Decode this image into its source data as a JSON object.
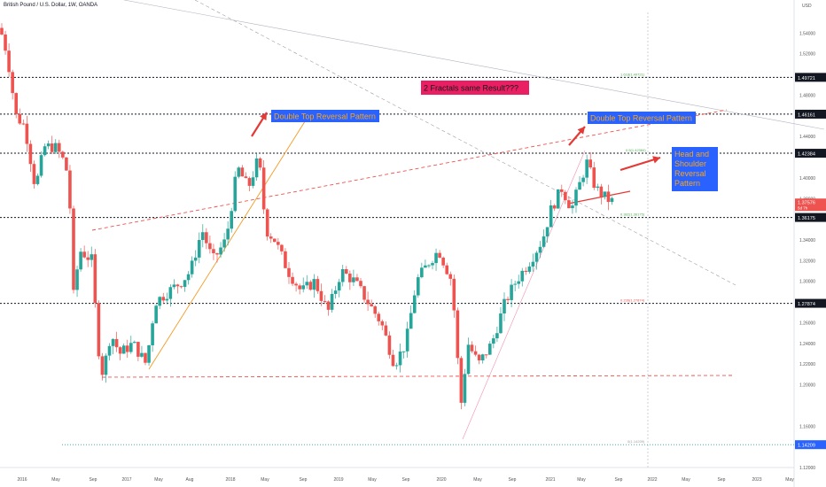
{
  "header": {
    "symbol_title": "British Pound / U.S. Dollar, 1W, OANDA",
    "currency": "USD"
  },
  "chart_data": {
    "type": "candlestick",
    "title": "British Pound / U.S. Dollar, 1W, OANDA",
    "ylim": [
      1.12,
      1.56
    ],
    "y_ticks": [
      1.54,
      1.52,
      1.48,
      1.44,
      1.4,
      1.38,
      1.34,
      1.32,
      1.3,
      1.26,
      1.24,
      1.22,
      1.2,
      1.16,
      1.12
    ],
    "y_tick_labels": [
      "1.54000",
      "1.52000",
      "1.48000",
      "1.44000",
      "1.40000",
      "1.38000",
      "1.34000",
      "1.32000",
      "1.30000",
      "1.26000",
      "1.24000",
      "1.22000",
      "1.20000",
      "1.16000",
      "1.12000"
    ],
    "x_tick_labels": [
      "2016",
      "May",
      "Sep",
      "2017",
      "May",
      "Aug",
      "2018",
      "May",
      "Sep",
      "2019",
      "May",
      "Sep",
      "2020",
      "May",
      "Sep",
      "2021",
      "May",
      "Sep",
      "2022",
      "May",
      "Sep",
      "2023",
      "May"
    ],
    "price_levels": [
      {
        "label": "1.49721",
        "value": 1.49721
      },
      {
        "label": "1.46161",
        "value": 1.46161
      },
      {
        "label": "1.42384",
        "value": 1.42384
      },
      {
        "label": "1.36175",
        "value": 1.36175
      },
      {
        "label": "1.27874",
        "value": 1.27874
      },
      {
        "label": "1.14209",
        "value": 1.14209
      }
    ],
    "fib_labels": [
      {
        "text": "1.618(1.49721)",
        "value": 1.49721
      },
      {
        "text": "0.5(1.42384)",
        "value": 1.42384
      },
      {
        "text": "0.382(1.36175)",
        "value": 1.36175
      },
      {
        "text": "0.236(1.27874)",
        "value": 1.27874
      },
      {
        "text": "0(1.14209)",
        "value": 1.14209
      }
    ],
    "current_price": {
      "label": "1.37576",
      "countdown": "5d 7h",
      "value": 1.37576
    },
    "annotations": [
      {
        "text": "Double Top Reversal Pattern"
      },
      {
        "text": "Double Top Reversal Pattern"
      },
      {
        "text": "2 Fractals same Result???"
      },
      {
        "text": "Head and Shoulder Reversal Pattern"
      }
    ],
    "colors": {
      "up": "#26a69a",
      "down": "#ef5350",
      "label_bg": "#2962ff",
      "label_text": "#f5a623",
      "question_bg": "#e91e63"
    },
    "grid": false
  }
}
